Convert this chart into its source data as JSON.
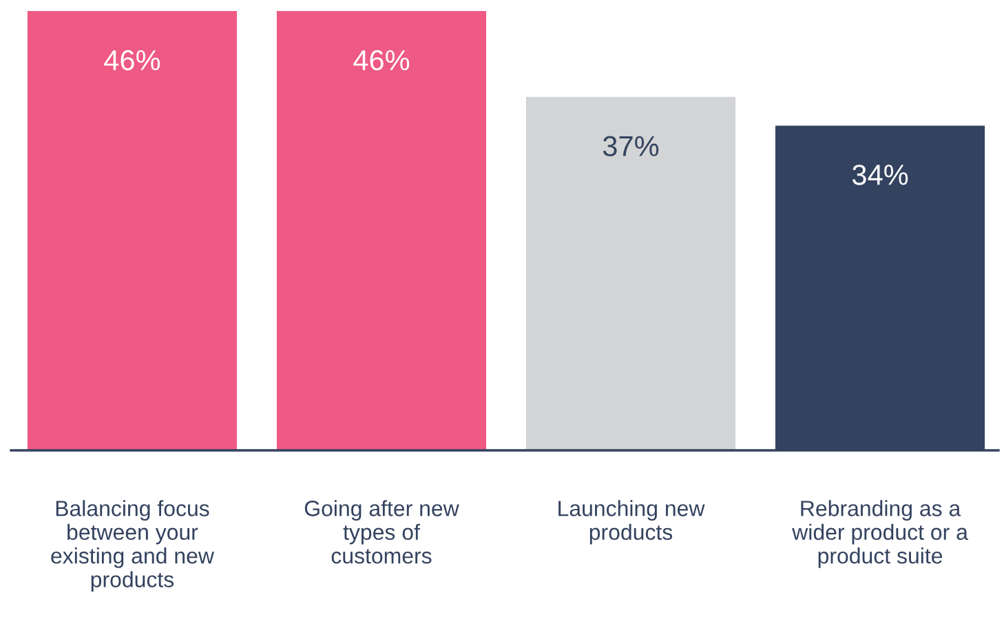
{
  "chart_data": {
    "type": "bar",
    "categories": [
      "Balancing focus\nbetween your\nexisting and new\nproducts",
      "Going after new\ntypes of\ncustomers",
      "Launching new\nproducts",
      "Rebranding as a\nwider product or a\nproduct suite"
    ],
    "values": [
      46,
      46,
      37,
      34
    ],
    "value_labels": [
      "46%",
      "46%",
      "37%",
      "34%"
    ],
    "colors": [
      "#ee5a84",
      "#ee5a84",
      "#d3d4d6",
      "#33425e"
    ],
    "grid": false,
    "legend": false
  }
}
